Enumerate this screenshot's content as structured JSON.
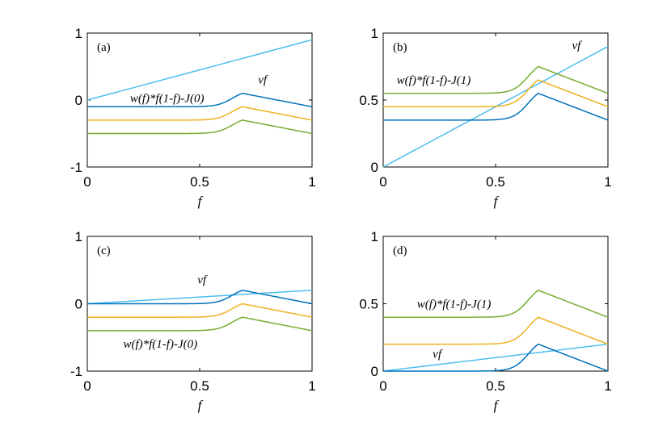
{
  "figure": {
    "colors": {
      "blue": "#0072BD",
      "orange": "#EDB120",
      "green": "#77AC30",
      "lightblue": "#4DBEEE",
      "axis": "#000000"
    }
  },
  "chart_data": [
    {
      "id": "a",
      "type": "line",
      "panel_label": "(a)",
      "xlabel": "f",
      "xlim": [
        0,
        1
      ],
      "ylim": [
        -1,
        1
      ],
      "xticks": [
        "0",
        "0.5",
        "1"
      ],
      "yticks": [
        "-1",
        "0",
        "1"
      ],
      "ytick_values": [
        -1,
        0,
        1
      ],
      "series": [
        {
          "name": "vf",
          "color_key": "lightblue",
          "form": "linear",
          "slope": 0.9
        },
        {
          "name": "w(f)*f(1-f)-J (blue)",
          "color_key": "blue",
          "form": "bump",
          "base": -0.1,
          "end": -0.1
        },
        {
          "name": "w(f)*f(1-f)-J (orange)",
          "color_key": "orange",
          "form": "bump",
          "base": -0.3,
          "end": -0.3
        },
        {
          "name": "w(f)*f(1-f)-J (green)",
          "color_key": "green",
          "form": "bump",
          "base": -0.5,
          "end": -0.5
        }
      ],
      "annotations": [
        {
          "text": "vf",
          "x": 0.76,
          "y": 0.25
        },
        {
          "text": "w(f)*f(1-f)-J(0)",
          "x": 0.19,
          "y": -0.03
        }
      ]
    },
    {
      "id": "b",
      "type": "line",
      "panel_label": "(b)",
      "xlabel": "f",
      "xlim": [
        0,
        1
      ],
      "ylim": [
        0,
        1
      ],
      "xticks": [
        "0",
        "0.5",
        "1"
      ],
      "yticks": [
        "0",
        "0.5",
        "1"
      ],
      "ytick_values": [
        0,
        0.5,
        1
      ],
      "series": [
        {
          "name": "vf",
          "color_key": "lightblue",
          "form": "linear",
          "slope": 0.9
        },
        {
          "name": "w(f)*f(1-f)-J (blue)",
          "color_key": "blue",
          "form": "bump",
          "base": 0.35,
          "end": 0.35
        },
        {
          "name": "w(f)*f(1-f)-J (orange)",
          "color_key": "orange",
          "form": "bump",
          "base": 0.45,
          "end": 0.45
        },
        {
          "name": "w(f)*f(1-f)-J (green)",
          "color_key": "green",
          "form": "bump",
          "base": 0.55,
          "end": 0.55
        }
      ],
      "annotations": [
        {
          "text": "vf",
          "x": 0.84,
          "y": 0.88
        },
        {
          "text": "w(f)*f(1-f)-J(1)",
          "x": 0.06,
          "y": 0.62
        }
      ]
    },
    {
      "id": "c",
      "type": "line",
      "panel_label": "(c)",
      "xlabel": "f",
      "xlim": [
        0,
        1
      ],
      "ylim": [
        -1,
        1
      ],
      "xticks": [
        "0",
        "0.5",
        "1"
      ],
      "yticks": [
        "-1",
        "0",
        "1"
      ],
      "ytick_values": [
        -1,
        0,
        1
      ],
      "series": [
        {
          "name": "vf",
          "color_key": "lightblue",
          "form": "linear",
          "slope": 0.2
        },
        {
          "name": "w(f)*f(1-f)-J (blue)",
          "color_key": "blue",
          "form": "bump",
          "base": 0.0,
          "end": 0.0
        },
        {
          "name": "w(f)*f(1-f)-J (orange)",
          "color_key": "orange",
          "form": "bump",
          "base": -0.2,
          "end": -0.2
        },
        {
          "name": "w(f)*f(1-f)-J (green)",
          "color_key": "green",
          "form": "bump",
          "base": -0.4,
          "end": -0.4
        }
      ],
      "annotations": [
        {
          "text": "vf",
          "x": 0.49,
          "y": 0.3
        },
        {
          "text": "w(f)*f(1-f)-J(0)",
          "x": 0.16,
          "y": -0.65
        }
      ]
    },
    {
      "id": "d",
      "type": "line",
      "panel_label": "(d)",
      "xlabel": "f",
      "xlim": [
        0,
        1
      ],
      "ylim": [
        0,
        1
      ],
      "xticks": [
        "0",
        "0.5",
        "1"
      ],
      "yticks": [
        "0",
        "0.5",
        "1"
      ],
      "ytick_values": [
        0,
        0.5,
        1
      ],
      "series": [
        {
          "name": "vf",
          "color_key": "lightblue",
          "form": "linear",
          "slope": 0.2
        },
        {
          "name": "w(f)*f(1-f)-J (blue)",
          "color_key": "blue",
          "form": "bump",
          "base": 0.0,
          "end": 0.0
        },
        {
          "name": "w(f)*f(1-f)-J (orange)",
          "color_key": "orange",
          "form": "bump",
          "base": 0.2,
          "end": 0.2
        },
        {
          "name": "w(f)*f(1-f)-J (green)",
          "color_key": "green",
          "form": "bump",
          "base": 0.4,
          "end": 0.4
        }
      ],
      "annotations": [
        {
          "text": "vf",
          "x": 0.22,
          "y": 0.1
        },
        {
          "text": "w(f)*f(1-f)-J(1)",
          "x": 0.15,
          "y": 0.47
        }
      ]
    }
  ]
}
